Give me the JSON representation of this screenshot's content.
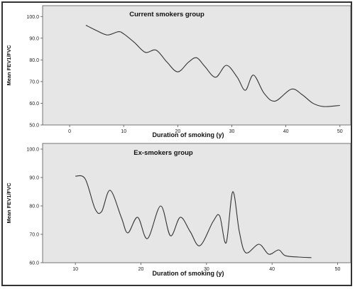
{
  "colors": {
    "plot_background": "#e6e6e6",
    "line": "#333333",
    "axis": "#555555",
    "frame": "#333333"
  },
  "chart_data": [
    {
      "type": "line",
      "title": "Current smokers group",
      "xlabel": "Duration of smoking (y)",
      "ylabel": "Mean FEV1/FVC",
      "xlim": [
        -5,
        52
      ],
      "ylim": [
        50,
        105
      ],
      "x_ticks": [
        0,
        10,
        20,
        30,
        40,
        50
      ],
      "y_ticks": [
        50,
        60,
        70,
        80,
        90,
        100
      ],
      "x_tick_labels": [
        "0",
        "10",
        "20",
        "30",
        "40",
        "50"
      ],
      "y_tick_labels": [
        "50.0",
        "60.0",
        "70.0",
        "80.0",
        "90.0",
        "100.0"
      ],
      "grid": false,
      "legend": "none",
      "series": [
        {
          "x": [
            3,
            5,
            7,
            9,
            10,
            12,
            14,
            16,
            18,
            20,
            22,
            23.5,
            25,
            27,
            29,
            31,
            32.5,
            34,
            36,
            38,
            41,
            43,
            45,
            47,
            50
          ],
          "y": [
            96,
            93.5,
            91.5,
            93,
            92,
            88,
            83.5,
            84.5,
            79,
            74.5,
            79,
            81,
            77,
            72,
            77.5,
            72,
            66,
            73,
            64.5,
            61,
            66.5,
            64,
            60,
            58.5,
            59
          ]
        }
      ]
    },
    {
      "type": "line",
      "title": "Ex-smokers group",
      "xlabel": "Duration of smoking (y)",
      "ylabel": "Mean FEV1/FVC",
      "xlim": [
        5,
        52
      ],
      "ylim": [
        60,
        102
      ],
      "x_ticks": [
        10,
        20,
        30,
        40,
        50
      ],
      "y_ticks": [
        60,
        70,
        80,
        90,
        100
      ],
      "x_tick_labels": [
        "10",
        "20",
        "30",
        "40",
        "50"
      ],
      "y_tick_labels": [
        "60.0",
        "70.0",
        "80.0",
        "90.0",
        "100.0"
      ],
      "grid": false,
      "legend": "none",
      "series": [
        {
          "x": [
            10,
            11.5,
            13,
            14,
            15.3,
            17,
            18,
            19.5,
            21,
            23,
            24.5,
            26,
            27.5,
            29,
            31,
            32,
            33,
            34,
            35,
            36,
            38,
            39.5,
            41,
            42,
            44,
            46
          ],
          "y": [
            90.5,
            89.5,
            79,
            78,
            85.5,
            76,
            70.5,
            76,
            68.5,
            80,
            69.5,
            76,
            71,
            66,
            74.5,
            76.5,
            67,
            85,
            71,
            63.5,
            66.5,
            63,
            64.5,
            62.5,
            62,
            61.8
          ]
        }
      ]
    }
  ]
}
